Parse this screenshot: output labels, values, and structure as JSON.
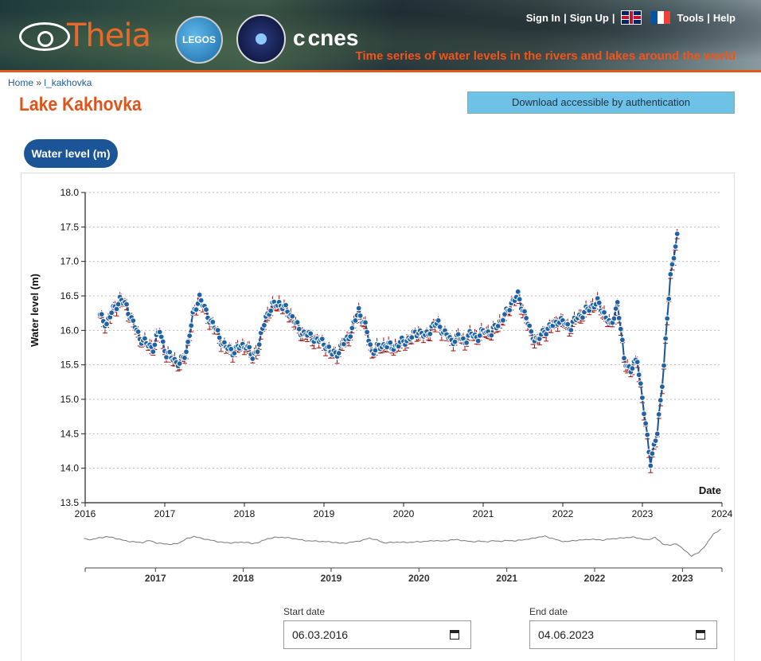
{
  "header": {
    "logo_text": "Theia",
    "legos_text": "LEGOS",
    "cnes_text": "cnes",
    "links": [
      "Sign In",
      "Sign Up",
      "Tools",
      "Help"
    ],
    "tagline": "Time series of water levels in the rivers and lakes around the world"
  },
  "breadcrumb": {
    "home": "Home",
    "separator": "»",
    "current": "l_kakhovka"
  },
  "page": {
    "title": "Lake Kakhovka",
    "download_label": "Download accessible by authentication",
    "tab_label": "Water level (m)"
  },
  "colors": {
    "accent": "#e0531a",
    "primary": "#1b5597",
    "point": "#1f62a6",
    "error": "#a01010"
  },
  "chart_data": {
    "type": "scatter",
    "ylabel": "Water level (m)",
    "xlabel": "Date",
    "ylim": [
      13.5,
      18.0
    ],
    "xlim": [
      2016,
      2024
    ],
    "y_ticks": [
      "13.5",
      "14.0",
      "14.5",
      "15.0",
      "15.5",
      "16.0",
      "16.5",
      "17.0",
      "17.5",
      "18.0"
    ],
    "x_ticks": [
      "2016",
      "2017",
      "2018",
      "2019",
      "2020",
      "2021",
      "2022",
      "2023",
      "2024"
    ],
    "nav_ticks": [
      "2017",
      "2018",
      "2019",
      "2020",
      "2021",
      "2022",
      "2023"
    ],
    "grid": true,
    "series": [
      {
        "x": [
          "2016-03",
          "2016-04",
          "2016-05",
          "2016-06",
          "2016-07",
          "2016-08",
          "2016-09",
          "2016-10",
          "2016-11",
          "2016-12",
          "2017-01",
          "2017-02",
          "2017-03",
          "2017-04",
          "2017-05",
          "2017-06",
          "2017-07",
          "2017-08",
          "2017-09",
          "2017-10",
          "2017-11",
          "2017-12",
          "2018-01",
          "2018-02",
          "2018-03",
          "2018-04",
          "2018-05",
          "2018-06",
          "2018-07",
          "2018-08",
          "2018-09",
          "2018-10",
          "2018-11",
          "2018-12",
          "2019-01",
          "2019-02",
          "2019-03",
          "2019-04",
          "2019-05",
          "2019-06",
          "2019-07",
          "2019-08",
          "2019-09",
          "2019-10",
          "2019-11",
          "2019-12",
          "2020-01",
          "2020-02",
          "2020-03",
          "2020-04",
          "2020-05",
          "2020-06",
          "2020-07",
          "2020-08",
          "2020-09",
          "2020-10",
          "2020-11",
          "2020-12",
          "2021-01",
          "2021-02",
          "2021-03",
          "2021-04",
          "2021-05",
          "2021-06",
          "2021-07",
          "2021-08",
          "2021-09",
          "2021-10",
          "2021-11",
          "2021-12",
          "2022-01",
          "2022-02",
          "2022-03",
          "2022-04",
          "2022-05",
          "2022-06",
          "2022-07",
          "2022-08",
          "2022-09",
          "2022-10",
          "2022-11",
          "2022-12",
          "2023-01",
          "2023-02",
          "2023-03",
          "2023-04",
          "2023-05",
          "2023-06"
        ],
        "y": [
          16.2,
          16.1,
          16.3,
          16.45,
          16.35,
          16.1,
          15.9,
          15.8,
          15.75,
          16.0,
          15.65,
          15.6,
          15.5,
          15.7,
          16.2,
          16.5,
          16.25,
          16.1,
          15.9,
          15.75,
          15.7,
          15.75,
          15.8,
          15.6,
          15.8,
          16.2,
          16.35,
          16.4,
          16.3,
          16.2,
          16.0,
          15.95,
          15.9,
          15.85,
          15.8,
          15.65,
          15.7,
          15.85,
          16.0,
          16.3,
          16.05,
          15.7,
          15.75,
          15.8,
          15.75,
          15.8,
          15.85,
          15.9,
          16.0,
          15.9,
          16.05,
          16.1,
          15.95,
          15.85,
          15.9,
          15.85,
          15.95,
          15.9,
          16.0,
          15.95,
          16.1,
          16.2,
          16.4,
          16.5,
          16.25,
          15.95,
          15.85,
          16.0,
          16.05,
          16.15,
          16.1,
          16.05,
          16.2,
          16.25,
          16.35,
          16.4,
          16.25,
          16.05,
          16.4,
          15.6,
          15.4,
          15.6,
          14.8,
          14.1,
          14.5,
          15.5,
          16.8,
          17.4
        ]
      }
    ]
  },
  "date_range": {
    "start_label": "Start date",
    "start_value": "06.03.2016",
    "end_label": "End date",
    "end_value": "04.06.2023"
  }
}
